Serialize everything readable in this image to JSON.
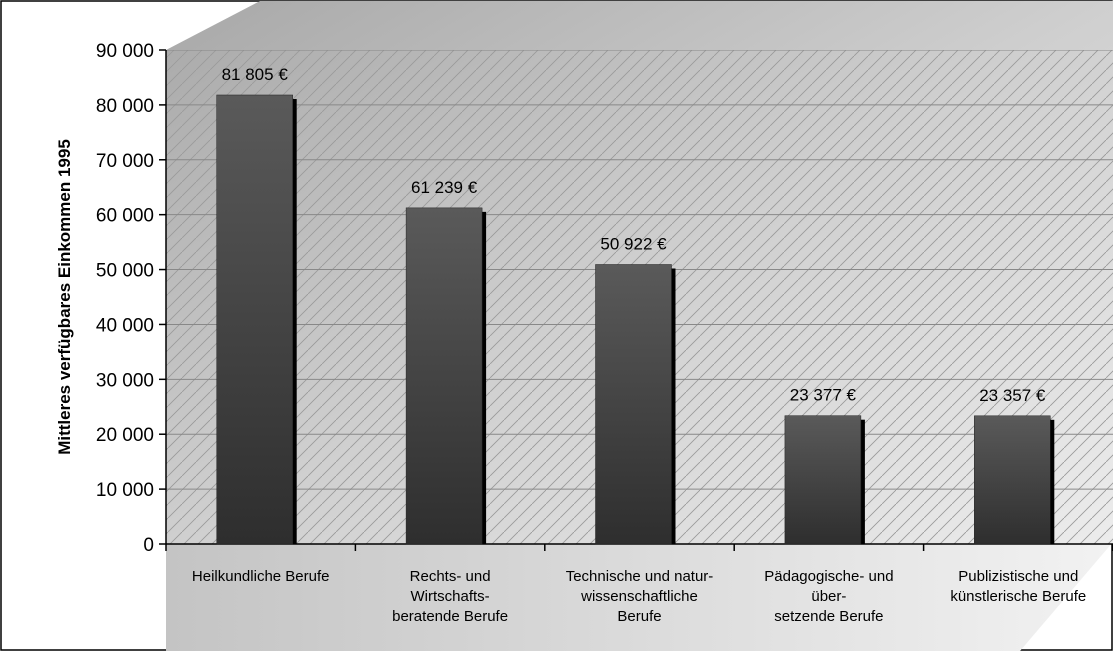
{
  "chart_data": {
    "type": "bar",
    "title": "",
    "xlabel": "",
    "ylabel": "Mittleres verfügbares Einkommen 1995",
    "ylim": [
      0,
      90000
    ],
    "yticks": [
      0,
      10000,
      20000,
      30000,
      40000,
      50000,
      60000,
      70000,
      80000,
      90000
    ],
    "ytick_labels": [
      "0",
      "10 000",
      "20 000",
      "30 000",
      "40 000",
      "50 000",
      "60 000",
      "70 000",
      "80 000",
      "90 000"
    ],
    "categories": [
      [
        "Heilkundliche Berufe"
      ],
      [
        "Rechts- und",
        "Wirtschafts-",
        "beratende Berufe"
      ],
      [
        "Technische und natur-",
        "wissenschaftliche",
        "Berufe"
      ],
      [
        "Pädagogische- und",
        "über-",
        "setzende Berufe"
      ],
      [
        "Publizistische und",
        "künstlerische Berufe"
      ]
    ],
    "values": [
      81805,
      61239,
      50922,
      23377,
      23357
    ],
    "data_labels": [
      "81 805 €",
      "61 239 €",
      "50 922 €",
      "23 377 €",
      "23 357 €"
    ],
    "grid": true,
    "legend": "none",
    "colors": {
      "bar": "#3c3c3c",
      "wall": "#c8c8c8",
      "floor": "#dcdcdc",
      "grid": "#888888"
    }
  }
}
